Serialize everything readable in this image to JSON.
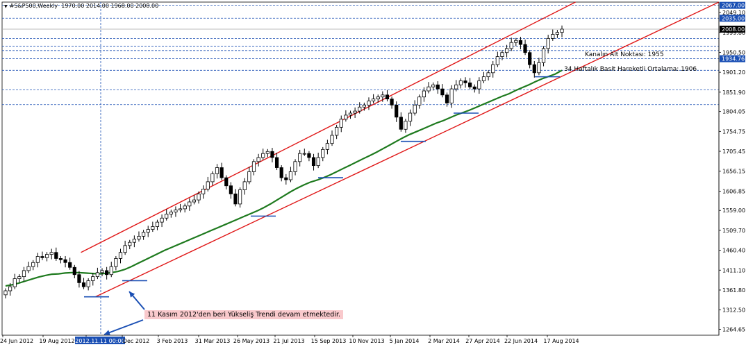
{
  "header": {
    "symbol": "#S&P500,Weekly",
    "ohlc": "1970.00 2014.00 1968.00 2008.00"
  },
  "annotations": {
    "channel_low": "Kanalın Alt Noktası: 1955",
    "sma": "34 Haftalık Basit Hareketli Ortalama: 1906",
    "trend_note": "11 Kasım 2012'den beri Yükseliş Trendi devam etmektedir."
  },
  "crosshair_time": "2012.11.11 00:00",
  "chart_data": {
    "type": "candlestick",
    "title": "",
    "xlabel": "",
    "ylabel": "",
    "ylim": [
      1250,
      2075
    ],
    "grid": false,
    "y_ticks": [
      "2049.10",
      "1999.80",
      "1950.50",
      "1901.20",
      "1851.90",
      "1804.05",
      "1754.75",
      "1705.45",
      "1656.15",
      "1606.85",
      "1559.00",
      "1509.70",
      "1460.40",
      "1411.10",
      "1361.80",
      "1312.50",
      "1264.65"
    ],
    "x_ticks": [
      "24 Jun 2012",
      "19 Aug 2012",
      "2012.11.11 00:00",
      "Dec 2012",
      "3 Feb 2013",
      "31 Mar 2013",
      "26 May 2013",
      "21 Jul 2013",
      "15 Sep 2013",
      "10 Nov 2013",
      "5 Jan 2014",
      "2 Mar 2014",
      "27 Apr 2014",
      "22 Jun 2014",
      "17 Aug 2014"
    ],
    "price_labels": [
      {
        "value": "2067.00",
        "color": "#1a4fb4"
      },
      {
        "value": "2035.00",
        "color": "#1a4fb4"
      },
      {
        "value": "2008.00",
        "color": "#000000"
      },
      {
        "value": "1934.76",
        "color": "#1a4fb4"
      }
    ],
    "hlines": [
      2067,
      2035,
      1985,
      1966,
      1955,
      1934.76,
      1906,
      1858,
      1821
    ],
    "closes": [
      1360,
      1370,
      1390,
      1395,
      1410,
      1420,
      1430,
      1445,
      1442,
      1450,
      1455,
      1440,
      1437,
      1430,
      1418,
      1400,
      1380,
      1370,
      1385,
      1395,
      1405,
      1410,
      1400,
      1420,
      1440,
      1455,
      1472,
      1480,
      1488,
      1495,
      1505,
      1512,
      1519,
      1530,
      1540,
      1550,
      1555,
      1560,
      1563,
      1570,
      1580,
      1585,
      1600,
      1612,
      1630,
      1650,
      1665,
      1640,
      1620,
      1600,
      1575,
      1610,
      1630,
      1655,
      1680,
      1690,
      1700,
      1705,
      1690,
      1665,
      1640,
      1635,
      1655,
      1680,
      1700,
      1700,
      1690,
      1670,
      1690,
      1710,
      1725,
      1745,
      1765,
      1785,
      1795,
      1800,
      1805,
      1815,
      1820,
      1830,
      1835,
      1840,
      1845,
      1835,
      1820,
      1790,
      1760,
      1780,
      1800,
      1820,
      1840,
      1855,
      1865,
      1870,
      1860,
      1845,
      1825,
      1860,
      1870,
      1880,
      1875,
      1865,
      1860,
      1880,
      1890,
      1900,
      1920,
      1940,
      1950,
      1960,
      1975,
      1980,
      1970,
      1950,
      1920,
      1900,
      1925,
      1960,
      1985,
      1995,
      2000,
      2008
    ],
    "sma34": [
      1372,
      1375,
      1379,
      1384,
      1389,
      1394,
      1398,
      1401,
      1402,
      1404,
      1405,
      1405,
      1404,
      1403,
      1402,
      1403,
      1405,
      1408,
      1413,
      1420,
      1428,
      1436,
      1444,
      1452,
      1460,
      1467,
      1474,
      1481,
      1488,
      1495,
      1502,
      1509,
      1516,
      1523,
      1530,
      1537,
      1544,
      1551,
      1558,
      1566,
      1575,
      1585,
      1595,
      1605,
      1614,
      1622,
      1629,
      1634,
      1640,
      1647,
      1655,
      1663,
      1671,
      1679,
      1687,
      1695,
      1703,
      1712,
      1721,
      1730,
      1739,
      1747,
      1754,
      1761,
      1768,
      1775,
      1781,
      1788,
      1795,
      1801,
      1807,
      1814,
      1821,
      1828,
      1835,
      1842,
      1848,
      1856,
      1863,
      1870,
      1878,
      1885,
      1891,
      1897,
      1906
    ],
    "channel": {
      "upper": {
        "x": [
          0.11,
          0.8
        ],
        "y": [
          1455,
          2075
        ]
      },
      "lower": {
        "x": [
          0.13,
          1.0
        ],
        "y": [
          1345,
          2075
        ]
      }
    },
    "support_marks": [
      1345,
      1385,
      1545,
      1640,
      1730,
      1800,
      1890
    ]
  }
}
